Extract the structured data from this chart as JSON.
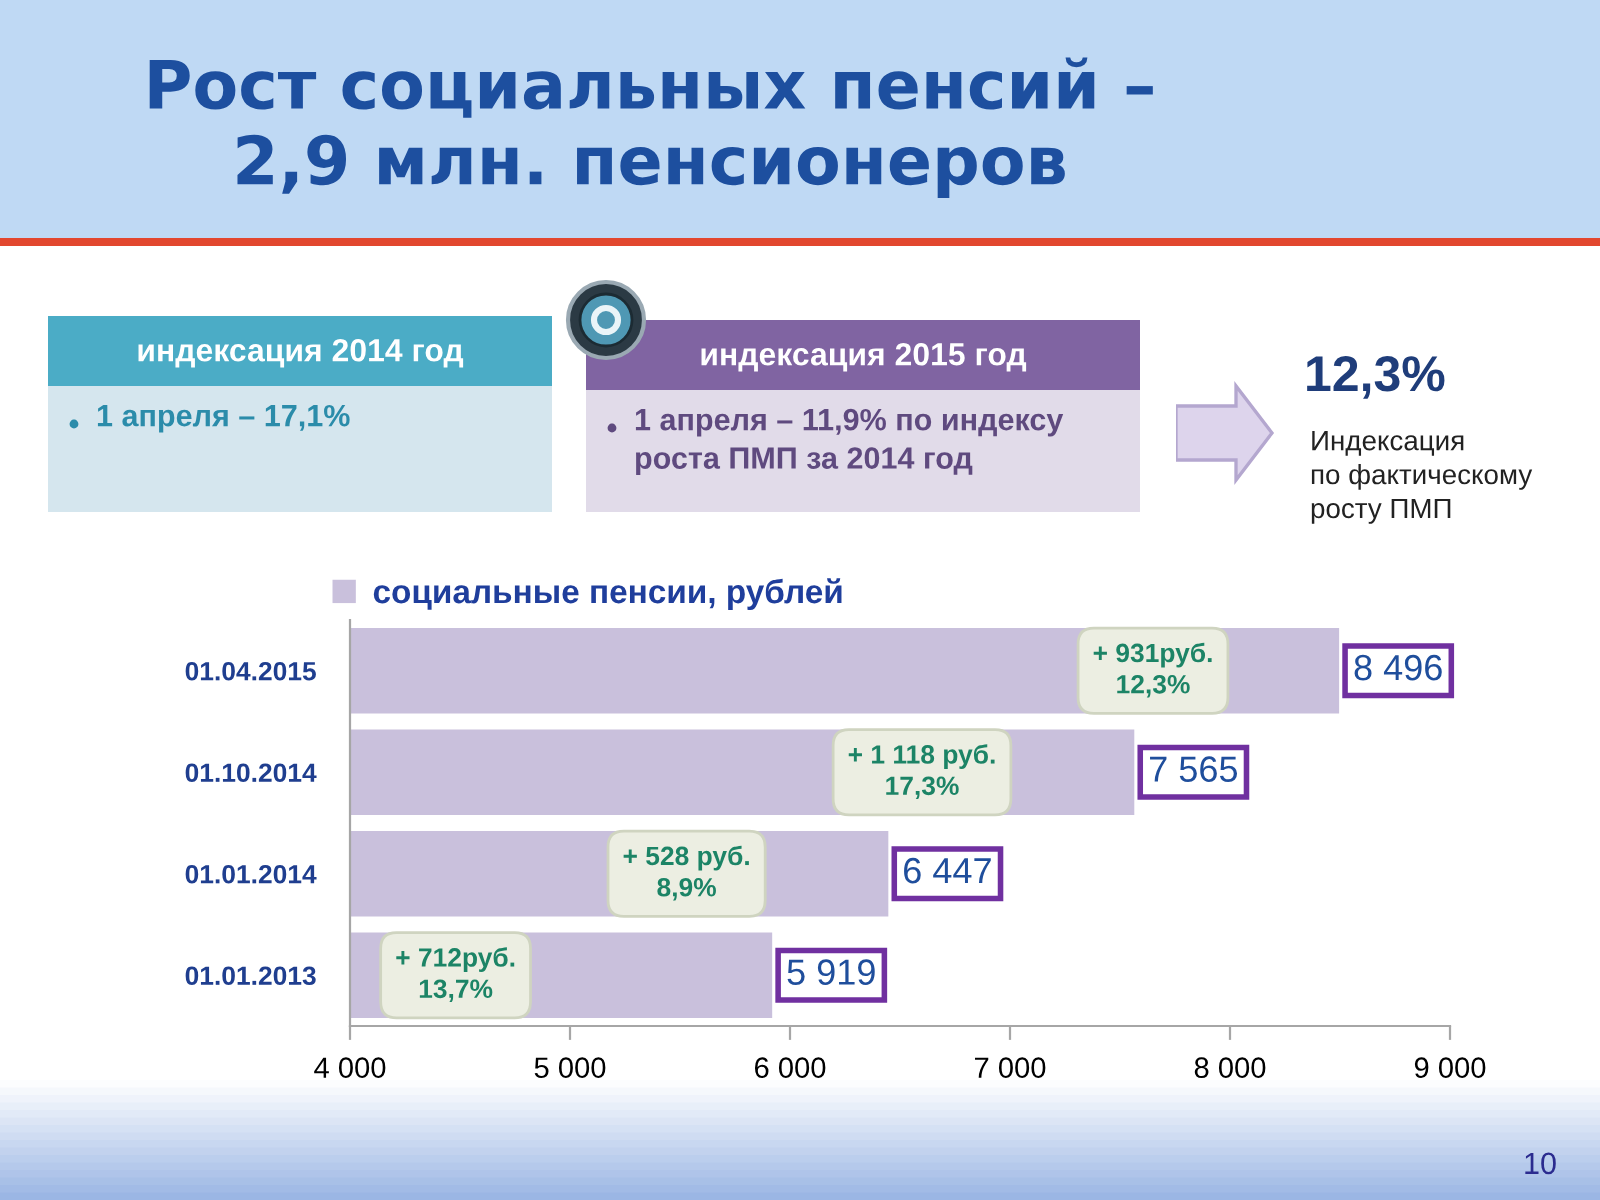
{
  "chart_data": [
    {
      "type": "other",
      "title": "Рост социальных пенсий –\n2,9 млн. пенсионеров"
    },
    {
      "type": "other",
      "title": "индексация 2014 год",
      "annotations": [
        "1 апреля – 17,1%"
      ]
    },
    {
      "type": "other",
      "title": "индексация 2015 год",
      "annotations": [
        "1 апреля – 11,9% по индексу\nроста ПМП за 2014 год"
      ]
    },
    {
      "type": "other",
      "title": "12,3%",
      "annotations": [
        "Индексация\nпо фактическому\nросту ПМП"
      ]
    },
    {
      "type": "bar",
      "orientation": "horizontal",
      "categories": [
        "01.04.2015",
        "01.10.2014",
        "01.01.2014",
        "01.01.2013"
      ],
      "series": [
        {
          "name": "социальные пенсии, рублей",
          "color": "#c9c0dc",
          "values": [
            8496,
            7565,
            6447,
            5919
          ],
          "value_labels": [
            "8 496",
            "7 565",
            "6 447",
            "5 919"
          ]
        }
      ],
      "xlim": [
        4000,
        9000
      ],
      "xticks": [
        {
          "value": 4000,
          "label": "4 000"
        },
        {
          "value": 5000,
          "label": "5 000"
        },
        {
          "value": 6000,
          "label": "6 000"
        },
        {
          "value": 7000,
          "label": "7 000"
        },
        {
          "value": 8000,
          "label": "8 000"
        },
        {
          "value": 9000,
          "label": "9 000"
        }
      ],
      "legend": "top left",
      "annotations": [
        {
          "text": "+ 931руб.\n12,3%",
          "x": 7650,
          "y": "01.04.2015"
        },
        {
          "text": "+ 1 118 руб.\n17,3%",
          "x": 6600,
          "y": "01.10.2014"
        },
        {
          "text": "+ 528 руб.\n8,9%",
          "x": 5530,
          "y": "01.01.2014"
        },
        {
          "text": "+ 712руб.\n13,7%",
          "x": 4480,
          "y": "01.01.2013"
        },
        "10"
      ]
    }
  ]
}
